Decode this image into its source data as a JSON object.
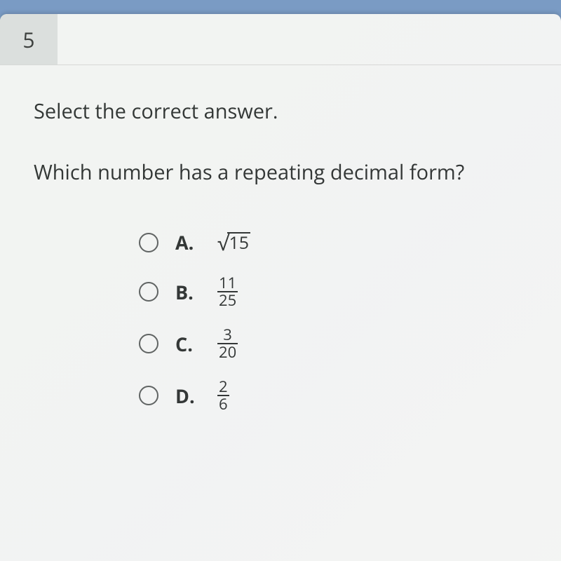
{
  "question_number": "5",
  "instruction": "Select the correct answer.",
  "question_text": "Which number has a repeating decimal form?",
  "options": [
    {
      "letter": "A.",
      "type": "sqrt",
      "arg": "15"
    },
    {
      "letter": "B.",
      "type": "frac",
      "num": "11",
      "den": "25"
    },
    {
      "letter": "C.",
      "type": "frac",
      "num": "3",
      "den": "20"
    },
    {
      "letter": "D.",
      "type": "frac",
      "num": "2",
      "den": "6"
    }
  ],
  "colors": {
    "page_bg": "#7a9bc4",
    "card_bg": "#f5f6f5",
    "qnum_bg": "#dde0df",
    "text": "#2f3332",
    "radio_border": "#5d6160",
    "divider": "#d9d9d8"
  },
  "fonts": {
    "body_size_pt": 22,
    "label_weight": 700
  }
}
